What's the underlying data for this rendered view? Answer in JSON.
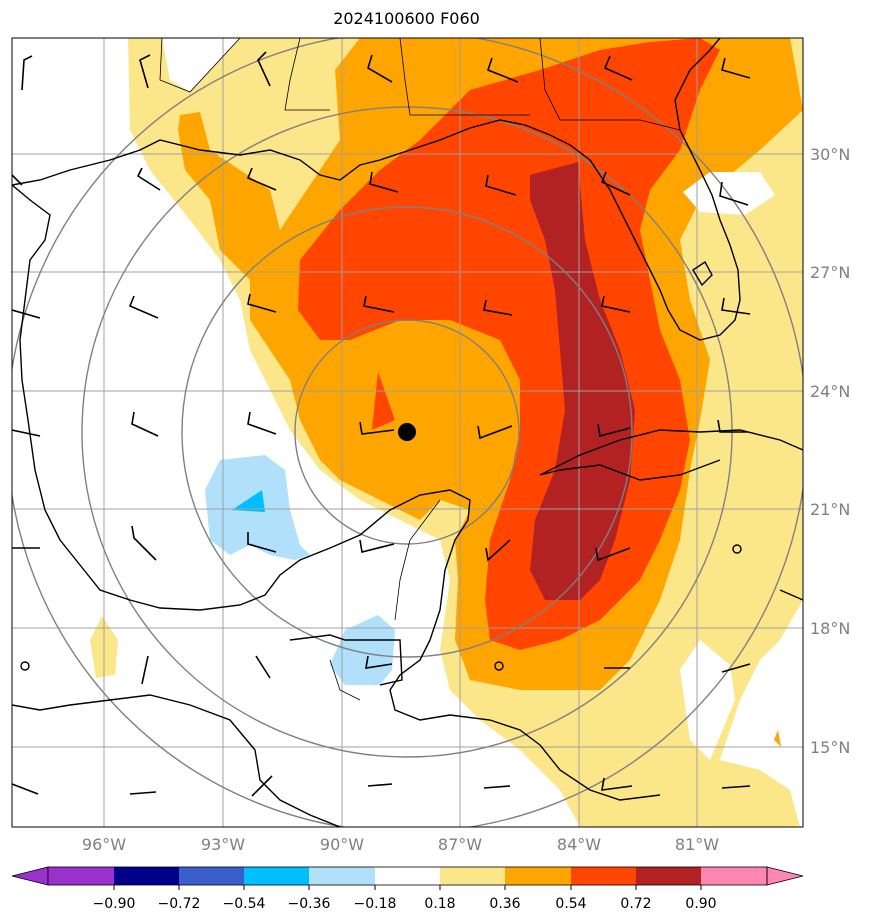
{
  "title": "2024100600 F060",
  "map": {
    "lat_labels": [
      "30°N",
      "27°N",
      "24°N",
      "21°N",
      "18°N",
      "15°N"
    ],
    "lon_labels": [
      "96°W",
      "93°W",
      "90°W",
      "87°W",
      "84°W",
      "81°W"
    ],
    "storm_center": {
      "lat": 22.9,
      "lon": -88.3,
      "marker": "filled-black-circle"
    },
    "colors": {
      "land_line": "#000000",
      "grid": "#a0a0a0",
      "range_rings": "#808080",
      "level_0.18": "#fbe68a",
      "level_0.36": "#ffa500",
      "level_0.54": "#ff4500",
      "level_0.72": "#b22222",
      "level_neg_0.18": "#b0e0fa",
      "level_neg_0.36": "#00bfff"
    }
  },
  "colorbar": {
    "ticks": [
      "−0.90",
      "−0.72",
      "−0.54",
      "−0.36",
      "−0.18",
      "0.18",
      "0.36",
      "0.54",
      "0.72",
      "0.90"
    ],
    "colors": [
      "#9932cc",
      "#00008b",
      "#3a5fcd",
      "#00bfff",
      "#b0e0fa",
      "#ffffff",
      "#fbe68a",
      "#ffa500",
      "#ff4500",
      "#b22222",
      "#ff86b0"
    ]
  }
}
